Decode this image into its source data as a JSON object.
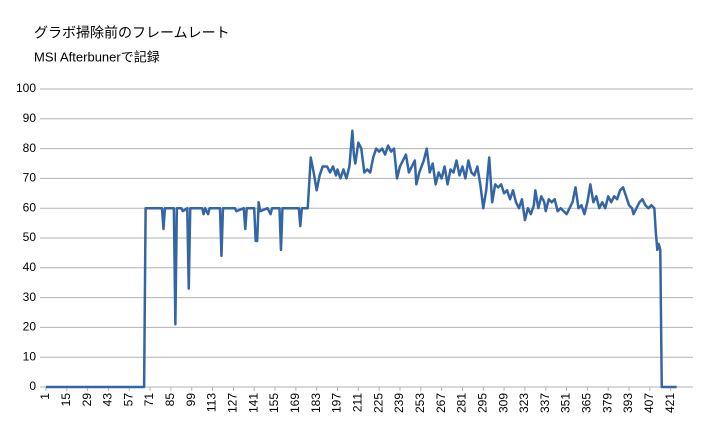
{
  "chart_data": {
    "type": "line",
    "title": "グラボ掃除前のフレームレート",
    "subtitle": "MSI Afterbunerで記録",
    "xlim": [
      -3,
      436
    ],
    "ylim": [
      0,
      100
    ],
    "xticks": [
      1,
      15,
      29,
      43,
      57,
      71,
      85,
      99,
      113,
      127,
      141,
      155,
      169,
      183,
      197,
      211,
      225,
      239,
      253,
      267,
      281,
      295,
      309,
      323,
      337,
      351,
      365,
      379,
      393,
      407,
      421
    ],
    "yticks": [
      0,
      10,
      20,
      30,
      40,
      50,
      60,
      70,
      80,
      90,
      100
    ],
    "grid": true,
    "color": "#3465a4",
    "x": [
      1,
      67,
      68,
      79,
      80,
      81,
      87,
      88,
      89,
      92,
      93,
      96,
      97,
      98,
      106,
      107,
      108,
      110,
      111,
      118,
      119,
      120,
      128,
      129,
      134,
      135,
      136,
      141,
      142,
      143,
      144,
      145,
      150,
      152,
      153,
      158,
      159,
      160,
      171,
      172,
      173,
      177,
      179,
      181,
      183,
      185,
      187,
      190,
      192,
      194,
      196,
      197,
      199,
      201,
      203,
      205,
      207,
      208,
      209,
      211,
      213,
      215,
      217,
      219,
      221,
      223,
      225,
      227,
      229,
      231,
      233,
      235,
      237,
      239,
      241,
      243,
      245,
      247,
      249,
      250,
      252,
      255,
      257,
      259,
      261,
      263,
      265,
      267,
      269,
      271,
      273,
      275,
      277,
      279,
      281,
      283,
      285,
      287,
      289,
      291,
      293,
      295,
      297,
      299,
      301,
      303,
      305,
      307,
      309,
      311,
      313,
      315,
      317,
      319,
      321,
      323,
      325,
      327,
      329,
      330,
      332,
      334,
      336,
      337,
      339,
      341,
      343,
      345,
      347,
      349,
      351,
      353,
      355,
      357,
      359,
      361,
      363,
      365,
      367,
      369,
      371,
      373,
      375,
      377,
      379,
      381,
      383,
      385,
      387,
      389,
      391,
      393,
      395,
      396,
      398,
      400,
      402,
      404,
      406,
      408,
      410,
      411,
      412,
      413,
      414,
      415,
      425
    ],
    "values": [
      0,
      0,
      60,
      60,
      53,
      60,
      60,
      21,
      60,
      60,
      59,
      60,
      33,
      60,
      60,
      58,
      60,
      58,
      60,
      60,
      44,
      60,
      60,
      59,
      60,
      53,
      60,
      60,
      49,
      49,
      62,
      59,
      60,
      58,
      60,
      60,
      46,
      60,
      60,
      54,
      60,
      60,
      77,
      72,
      66,
      71,
      74,
      74,
      72,
      74,
      71,
      73,
      70,
      73,
      70,
      74,
      86,
      78,
      75,
      82,
      80,
      72,
      73,
      72,
      77,
      80,
      79,
      80,
      78,
      81,
      79,
      80,
      70,
      74,
      76,
      78,
      72,
      74,
      76,
      68,
      72,
      76,
      80,
      72,
      75,
      68,
      72,
      70,
      74,
      68,
      73,
      72,
      76,
      71,
      74,
      70,
      76,
      72,
      71,
      74,
      68,
      60,
      66,
      77,
      62,
      68,
      67,
      68,
      65,
      66,
      63,
      66,
      62,
      60,
      63,
      56,
      60,
      58,
      61,
      66,
      60,
      64,
      62,
      59,
      63,
      62,
      63,
      59,
      60,
      59,
      58,
      60,
      62,
      67,
      60,
      61,
      58,
      62,
      68,
      62,
      64,
      60,
      62,
      60,
      64,
      62,
      64,
      63,
      66,
      67,
      64,
      61,
      60,
      58,
      60,
      62,
      63,
      61,
      60,
      61,
      60,
      52,
      46,
      48,
      46,
      0,
      0
    ]
  }
}
